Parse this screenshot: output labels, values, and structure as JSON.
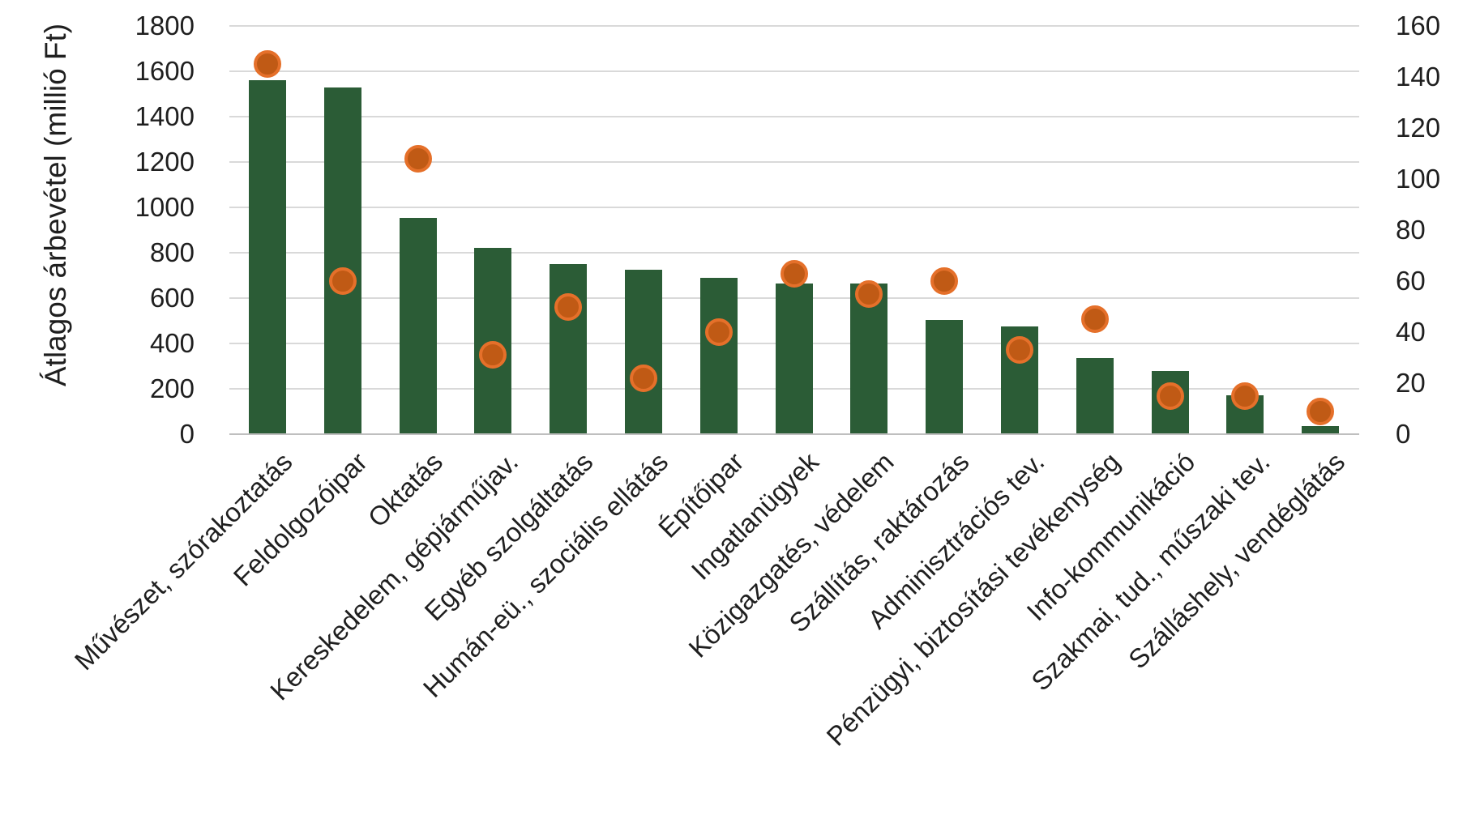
{
  "chart_data": {
    "type": "bar",
    "subtype": "combo-bar-scatter-dual-axis",
    "title": "",
    "categories": [
      "Művészet, szórakoztatás",
      "Feldolgozóipar",
      "Oktatás",
      "Kereskedelem, gépjárműjav.",
      "Egyéb szolgáltatás",
      "Humán-eü., szociális ellátás",
      "Építőipar",
      "Ingatlanügyek",
      "Közigazgatés, védelem",
      "Szállítás, raktározás",
      "Adminisztrációs tev.",
      "Pénzügyi, biztosítási tevékenység",
      "Info-kommunikáció",
      "Szakmai, tud., műszaki tev.",
      "Szálláshely, vendéglátás"
    ],
    "series": [
      {
        "name": "Átlagos árbevétel (millió Ft)",
        "type": "bar",
        "axis": "left",
        "values": [
          1560,
          1530,
          955,
          820,
          750,
          725,
          690,
          665,
          665,
          505,
          475,
          335,
          280,
          170,
          35
        ]
      },
      {
        "name": "scatter",
        "type": "scatter",
        "axis": "right",
        "values": [
          145,
          60,
          108,
          31,
          50,
          22,
          40,
          63,
          55,
          60,
          33,
          45,
          15,
          15,
          9
        ]
      }
    ],
    "left_axis": {
      "label": "Átlagos árbevétel (millió Ft)",
      "min": 0,
      "max": 1800,
      "tick_step": 200,
      "ticks": [
        1800,
        1600,
        1400,
        1200,
        1000,
        800,
        600,
        400,
        200,
        0
      ]
    },
    "right_axis": {
      "label": "",
      "min": 0,
      "max": 160,
      "tick_step": 20,
      "ticks": [
        160,
        140,
        120,
        100,
        80,
        60,
        40,
        20,
        0
      ]
    },
    "grid": "horizontal",
    "legend": "none",
    "colors": {
      "bar": "#2b5c36",
      "dot_fill": "#c05a15",
      "dot_border": "#e5702a",
      "gridline": "#d9d9d9",
      "axis_line": "#bfbfbf",
      "text": "#1f1f1f",
      "background": "#ffffff"
    }
  }
}
